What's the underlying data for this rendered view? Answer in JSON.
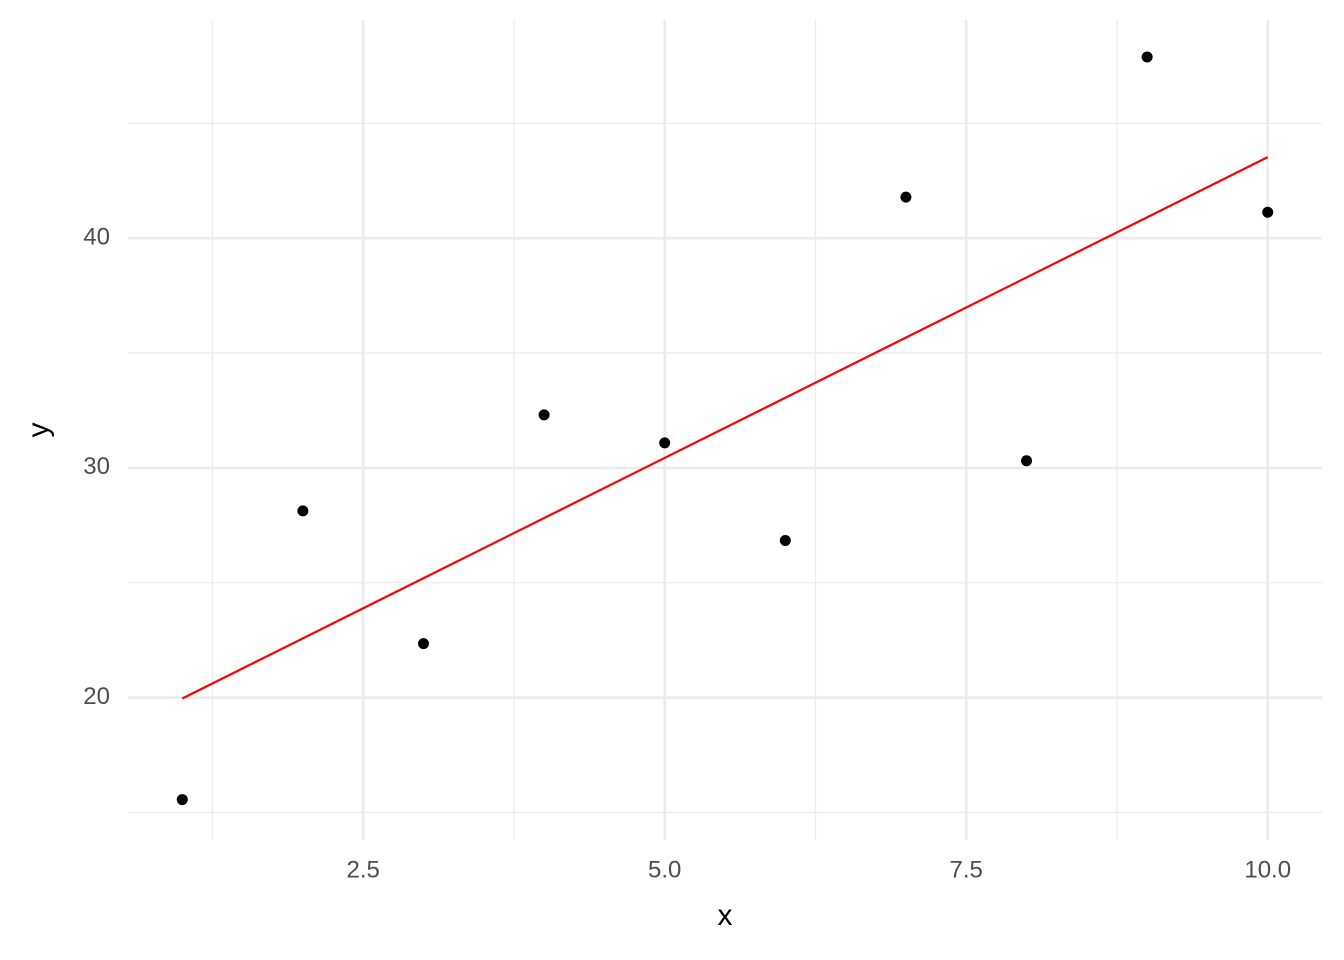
{
  "chart_data": {
    "type": "scatter",
    "x_label": "x",
    "y_label": "y",
    "points": {
      "x": [
        1,
        2,
        3,
        4,
        5,
        6,
        7,
        8,
        9,
        10
      ],
      "y": [
        15.56,
        28.13,
        22.35,
        32.31,
        31.09,
        26.84,
        41.79,
        30.31,
        47.89,
        41.13
      ],
      "color": "#000000"
    },
    "fit": {
      "x": [
        1,
        10
      ],
      "y": [
        19.96,
        43.53
      ],
      "color": "#ff0000"
    },
    "xlim": [
      0.55,
      10.45
    ],
    "ylim": [
      13.8,
      49.5
    ],
    "xticks": [
      2.5,
      {
        "value": 5,
        "label": "5.0"
      },
      7.5,
      {
        "value": 10,
        "label": "10.0"
      }
    ],
    "yticks": [
      20,
      30,
      40
    ],
    "xminor": [
      1.25,
      3.75,
      6.25,
      8.75
    ],
    "yminor": [
      15,
      25,
      35,
      45
    ],
    "grid": true
  }
}
